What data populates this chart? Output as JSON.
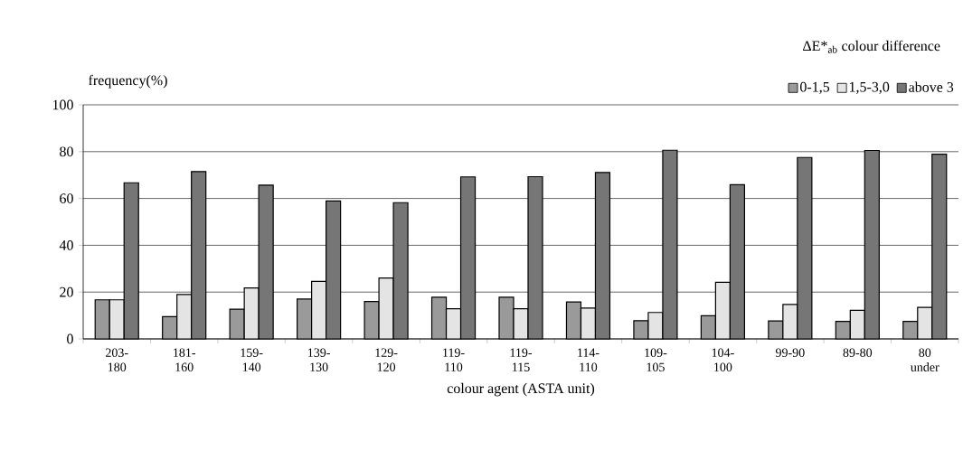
{
  "chart_data": {
    "type": "bar",
    "xlabel": "colour agent (ASTA unit)",
    "ylabel": "frequency(%)",
    "legend_title": "ΔE*$_{ab}$ colour difference",
    "categories": [
      "203-180",
      "181-160",
      "159-140",
      "139-130",
      "129-120",
      "119-110",
      "119-115",
      "114-110",
      "109-105",
      "104-100",
      "99-90",
      "89-80",
      "80 under"
    ],
    "series": [
      {
        "name": "0-1,5",
        "color": "#9a9a9a",
        "values": [
          16.7,
          9.5,
          12.7,
          17,
          16,
          17.8,
          17.8,
          15.8,
          7.8,
          9.9,
          7.7,
          7.5,
          7.5
        ]
      },
      {
        "name": "1,5-3,0",
        "color": "#e4e4e4",
        "values": [
          16.7,
          19,
          21.8,
          24.6,
          26,
          12.9,
          12.9,
          13.2,
          11.3,
          24.2,
          14.7,
          12.2,
          13.5
        ]
      },
      {
        "name": "above 3",
        "color": "#767676",
        "values": [
          66.7,
          71.5,
          65.7,
          58.9,
          58.2,
          69.2,
          69.3,
          71.1,
          80.6,
          65.9,
          77.5,
          80.5,
          78.9
        ]
      }
    ],
    "ylim": [
      0,
      100
    ],
    "yticks": [
      0,
      20,
      40,
      60,
      80,
      100
    ],
    "grid": "y",
    "legend": "top right"
  }
}
